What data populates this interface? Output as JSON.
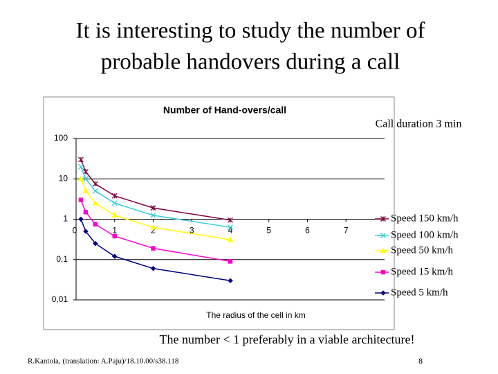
{
  "slide": {
    "title_lines": [
      "It is interesting to study the number of",
      "probable handovers during a call"
    ],
    "note": "The number < 1 preferably in a viable architecture!",
    "footer": "R.Kantola, (translation: A.Paju)/18.10.00/s38.118",
    "page_number": 8
  },
  "chart_data": {
    "type": "line",
    "title": "Number of Hand-overs/call",
    "annotation": "Call duration 3 min",
    "x_label": "The radius of the cell in km",
    "x": [
      0.125,
      0.25,
      0.5,
      1,
      2,
      4
    ],
    "xlim": [
      0,
      8
    ],
    "xticks": [
      0,
      1,
      2,
      3,
      4,
      5,
      6,
      7
    ],
    "ylim": [
      0.01,
      100
    ],
    "log_y": true,
    "grid": true,
    "yticks": [
      {
        "value": 100,
        "label": "100"
      },
      {
        "value": 10,
        "label": "10"
      },
      {
        "value": 1,
        "label": "1"
      },
      {
        "value": 0.1,
        "label": "0,1"
      },
      {
        "value": 0.01,
        "label": "0,01"
      }
    ],
    "series": [
      {
        "name": "Speed 150 km/h",
        "color": "#800040",
        "marker": "star",
        "values": [
          30,
          15,
          7.5,
          3.8,
          1.9,
          0.95
        ]
      },
      {
        "name": "Speed 100 km/h",
        "color": "#33ccdd",
        "marker": "x",
        "values": [
          20,
          10,
          5,
          2.5,
          1.25,
          0.63
        ]
      },
      {
        "name": "Speed 50 km/h",
        "color": "#ffff00",
        "marker": "triangle",
        "values": [
          10,
          5,
          2.5,
          1.25,
          0.63,
          0.31
        ]
      },
      {
        "name": "Speed 15 km/h",
        "color": "#ff00cc",
        "marker": "square",
        "values": [
          3,
          1.5,
          0.75,
          0.38,
          0.19,
          0.09
        ]
      },
      {
        "name": "Speed 5 km/h",
        "color": "#000080",
        "marker": "diamond",
        "values": [
          1,
          0.5,
          0.25,
          0.12,
          0.06,
          0.03
        ]
      }
    ]
  }
}
